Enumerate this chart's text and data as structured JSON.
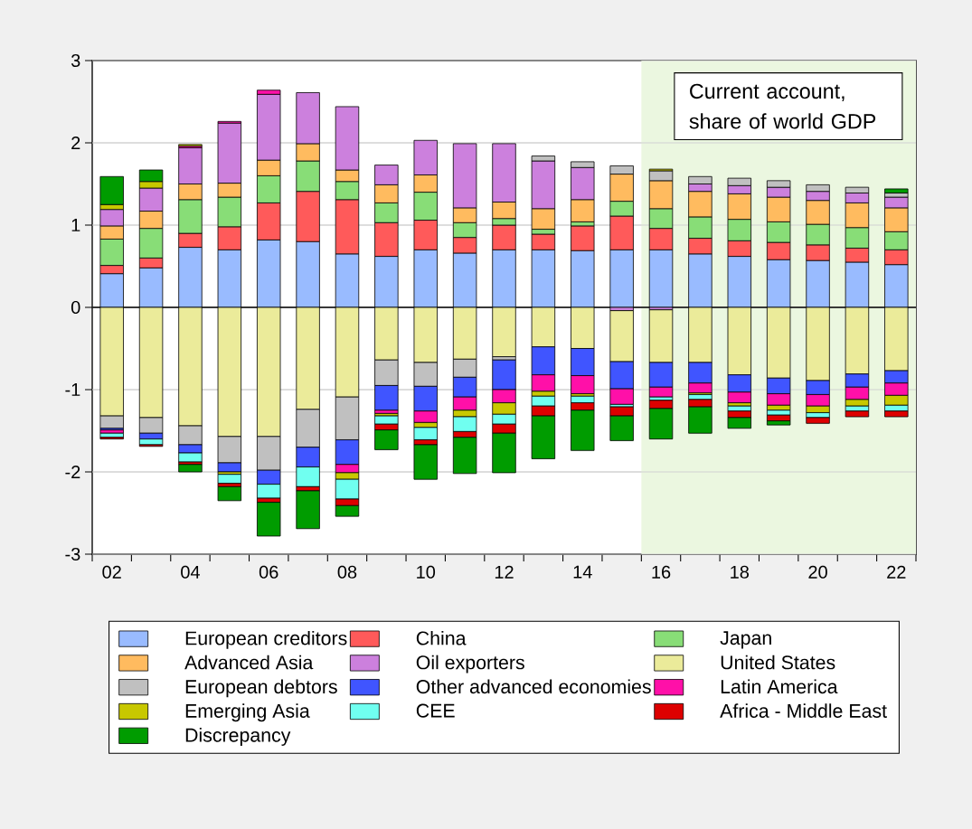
{
  "chart_data": {
    "type": "bar",
    "stacked": true,
    "title": "Current account, share of world GDP",
    "x": [
      2002,
      2003,
      2004,
      2005,
      2006,
      2007,
      2008,
      2009,
      2010,
      2011,
      2012,
      2013,
      2014,
      2015,
      2016,
      2017,
      2018,
      2019,
      2020,
      2021,
      2022
    ],
    "xlim": [
      2001.5,
      2022.5
    ],
    "xticks": [
      {
        "value": 2002,
        "label": "02"
      },
      {
        "value": 2004,
        "label": "04"
      },
      {
        "value": 2006,
        "label": "06"
      },
      {
        "value": 2008,
        "label": "08"
      },
      {
        "value": 2010,
        "label": "10"
      },
      {
        "value": 2012,
        "label": "12"
      },
      {
        "value": 2014,
        "label": "14"
      },
      {
        "value": 2016,
        "label": "16"
      },
      {
        "value": 2018,
        "label": "18"
      },
      {
        "value": 2020,
        "label": "20"
      },
      {
        "value": 2022,
        "label": "22"
      },
      {
        "value": 2001.5,
        "label": null
      },
      {
        "value": 2002.5,
        "label": null
      },
      {
        "value": 2003.5,
        "label": null
      },
      {
        "value": 2004.5,
        "label": null
      },
      {
        "value": 2005.5,
        "label": null
      },
      {
        "value": 2006.5,
        "label": null
      },
      {
        "value": 2007.5,
        "label": null
      },
      {
        "value": 2008.5,
        "label": null
      },
      {
        "value": 2009.5,
        "label": null
      },
      {
        "value": 2010.5,
        "label": null
      },
      {
        "value": 2011.5,
        "label": null
      },
      {
        "value": 2012.5,
        "label": null
      },
      {
        "value": 2013.5,
        "label": null
      },
      {
        "value": 2014.5,
        "label": null
      },
      {
        "value": 2015.5,
        "label": null
      },
      {
        "value": 2016.5,
        "label": null
      },
      {
        "value": 2017.5,
        "label": null
      },
      {
        "value": 2018.5,
        "label": null
      },
      {
        "value": 2019.5,
        "label": null
      },
      {
        "value": 2020.5,
        "label": null
      },
      {
        "value": 2021.5,
        "label": null
      },
      {
        "value": 2022.5,
        "label": null
      }
    ],
    "ylim": [
      -3,
      3
    ],
    "yticks": [
      -3,
      -2,
      -1,
      0,
      1,
      2,
      3
    ],
    "grid": "y",
    "legend": "bottom",
    "bands": [
      {
        "axis": "x",
        "from": 2015.5,
        "to": 2022.5,
        "color": "#ebf7e0"
      }
    ],
    "ref_lines": [
      {
        "axis": "y",
        "value": 0,
        "color": "#000000"
      }
    ],
    "series": [
      {
        "name": "European creditors",
        "color": "#99bbff",
        "values": [
          0.41,
          0.48,
          0.73,
          0.7,
          0.82,
          0.8,
          0.65,
          0.62,
          0.7,
          0.66,
          0.7,
          0.7,
          0.69,
          0.7,
          0.7,
          0.65,
          0.62,
          0.58,
          0.57,
          0.55,
          0.52
        ]
      },
      {
        "name": "China",
        "color": "#ff5a5a",
        "values": [
          0.1,
          0.12,
          0.17,
          0.28,
          0.45,
          0.61,
          0.66,
          0.41,
          0.36,
          0.19,
          0.3,
          0.19,
          0.3,
          0.41,
          0.26,
          0.19,
          0.19,
          0.21,
          0.19,
          0.17,
          0.18
        ]
      },
      {
        "name": "Japan",
        "color": "#88dd77",
        "values": [
          0.32,
          0.36,
          0.41,
          0.36,
          0.33,
          0.37,
          0.22,
          0.24,
          0.34,
          0.18,
          0.08,
          0.06,
          0.05,
          0.18,
          0.24,
          0.26,
          0.26,
          0.25,
          0.25,
          0.25,
          0.22
        ]
      },
      {
        "name": "Advanced Asia",
        "color": "#ffbb5f",
        "values": [
          0.16,
          0.21,
          0.19,
          0.17,
          0.19,
          0.21,
          0.14,
          0.22,
          0.21,
          0.18,
          0.2,
          0.25,
          0.27,
          0.33,
          0.34,
          0.31,
          0.31,
          0.3,
          0.29,
          0.3,
          0.29
        ]
      },
      {
        "name": "Oil exporters",
        "color": "#cc80dd",
        "values": [
          0.2,
          0.28,
          0.44,
          0.73,
          0.8,
          0.62,
          0.77,
          0.24,
          0.42,
          0.78,
          0.71,
          0.58,
          0.39,
          -0.04,
          -0.03,
          0.09,
          0.1,
          0.12,
          0.11,
          0.12,
          0.13
        ]
      },
      {
        "name": "United States",
        "color": "#ebeb9a",
        "values": [
          -1.32,
          -1.34,
          -1.44,
          -1.57,
          -1.57,
          -1.24,
          -1.09,
          -0.64,
          -0.67,
          -0.63,
          -0.6,
          -0.48,
          -0.5,
          -0.62,
          -0.64,
          -0.67,
          -0.82,
          -0.86,
          -0.89,
          -0.81,
          -0.77
        ]
      },
      {
        "name": "European debtors",
        "color": "#c0c0c0",
        "values": [
          -0.15,
          -0.19,
          -0.23,
          -0.32,
          -0.41,
          -0.46,
          -0.52,
          -0.31,
          -0.29,
          -0.22,
          -0.04,
          0.06,
          0.07,
          0.1,
          0.12,
          0.09,
          0.09,
          0.08,
          0.08,
          0.07,
          0.05
        ]
      },
      {
        "name": "Other advanced economies",
        "color": "#4055ff",
        "values": [
          -0.02,
          -0.07,
          -0.1,
          -0.11,
          -0.17,
          -0.24,
          -0.3,
          -0.3,
          -0.3,
          -0.24,
          -0.36,
          -0.34,
          -0.33,
          -0.33,
          -0.3,
          -0.25,
          -0.21,
          -0.19,
          -0.17,
          -0.16,
          -0.15
        ]
      },
      {
        "name": "Latin America",
        "color": "#ff10a8",
        "values": [
          -0.04,
          null,
          0.02,
          0.02,
          0.05,
          null,
          -0.1,
          -0.04,
          -0.14,
          -0.16,
          -0.16,
          -0.2,
          -0.22,
          -0.19,
          -0.12,
          -0.12,
          -0.13,
          -0.14,
          -0.14,
          -0.15,
          -0.15
        ]
      },
      {
        "name": "Emerging Asia",
        "color": "#c8c800",
        "values": [
          0.06,
          0.08,
          0.02,
          -0.03,
          null,
          null,
          -0.08,
          -0.03,
          -0.06,
          -0.08,
          -0.14,
          -0.06,
          -0.03,
          null,
          0.02,
          -0.02,
          -0.04,
          -0.06,
          -0.08,
          -0.08,
          -0.12
        ]
      },
      {
        "name": "CEE",
        "color": "#70fff0",
        "values": [
          -0.05,
          -0.07,
          -0.11,
          -0.11,
          -0.17,
          -0.24,
          -0.24,
          -0.1,
          -0.15,
          -0.18,
          -0.12,
          -0.12,
          -0.08,
          -0.03,
          -0.04,
          -0.06,
          -0.06,
          -0.06,
          -0.06,
          -0.06,
          -0.07
        ]
      },
      {
        "name": "Africa - Middle East",
        "color": "#dd0000",
        "values": [
          -0.02,
          -0.02,
          -0.03,
          -0.04,
          -0.05,
          -0.05,
          -0.08,
          -0.07,
          -0.06,
          -0.07,
          -0.11,
          -0.12,
          -0.09,
          -0.11,
          -0.1,
          -0.09,
          -0.08,
          -0.07,
          -0.07,
          -0.07,
          -0.07
        ]
      },
      {
        "name": "Discrepancy",
        "color": "#009c00",
        "values": [
          0.34,
          0.14,
          -0.09,
          -0.17,
          -0.41,
          -0.46,
          -0.13,
          -0.24,
          -0.42,
          -0.44,
          -0.48,
          -0.52,
          -0.49,
          -0.3,
          -0.37,
          -0.32,
          -0.13,
          -0.05,
          null,
          null,
          0.05
        ]
      }
    ]
  }
}
